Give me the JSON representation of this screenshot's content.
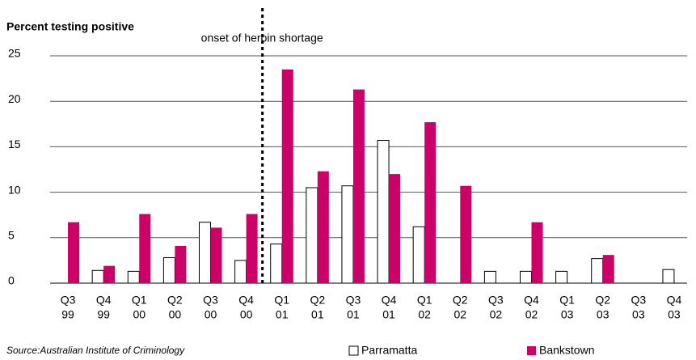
{
  "chart_data": {
    "type": "bar",
    "title": "Percent testing positive",
    "source": "Source:Australian Institute of Criminology",
    "annotation": "onset of heroin shortage",
    "categories": [
      [
        "Q3",
        "99"
      ],
      [
        "Q4",
        "99"
      ],
      [
        "Q1",
        "00"
      ],
      [
        "Q2",
        "00"
      ],
      [
        "Q3",
        "00"
      ],
      [
        "Q4",
        "00"
      ],
      [
        "Q1",
        "01"
      ],
      [
        "Q2",
        "01"
      ],
      [
        "Q3",
        "01"
      ],
      [
        "Q4",
        "01"
      ],
      [
        "Q1",
        "02"
      ],
      [
        "Q2",
        "02"
      ],
      [
        "Q3",
        "02"
      ],
      [
        "Q4",
        "02"
      ],
      [
        "Q1",
        "03"
      ],
      [
        "Q2",
        "03"
      ],
      [
        "Q3",
        "03"
      ],
      [
        "Q4",
        "03"
      ]
    ],
    "series": [
      {
        "name": "Parramatta",
        "color": "#ffffff",
        "values": [
          0,
          1.4,
          1.3,
          2.8,
          6.7,
          2.5,
          4.3,
          10.5,
          10.7,
          15.7,
          6.2,
          0,
          1.3,
          1.3,
          1.3,
          2.7,
          0,
          1.5
        ]
      },
      {
        "name": "Bankstown",
        "color": "#cc0066",
        "values": [
          6.7,
          1.9,
          7.6,
          4.1,
          6.1,
          7.6,
          23.5,
          12.3,
          21.3,
          12.0,
          17.7,
          10.7,
          0,
          6.7,
          0,
          3.1,
          0,
          0
        ]
      }
    ],
    "ylim": [
      0,
      25
    ],
    "yticks": [
      0,
      5,
      10,
      15,
      20,
      25
    ],
    "grid": true
  }
}
